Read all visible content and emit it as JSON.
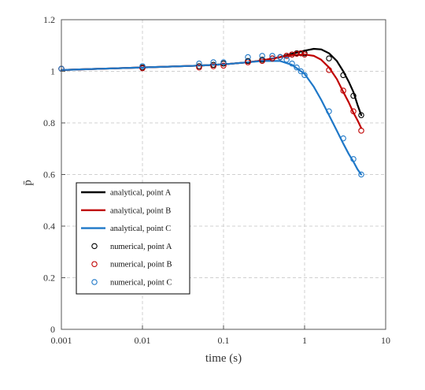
{
  "chart_data": {
    "type": "line",
    "xlabel": "time (s)",
    "ylabel": "p̄",
    "x_scale": "log",
    "xlim": [
      0.001,
      10
    ],
    "ylim": [
      0,
      1.2
    ],
    "x_ticks": [
      0.001,
      0.01,
      0.1,
      1,
      10
    ],
    "x_tick_labels": [
      "0.001",
      "0.01",
      "0.1",
      "1",
      "10"
    ],
    "y_ticks": [
      0,
      0.2,
      0.4,
      0.6,
      0.8,
      1,
      1.2
    ],
    "y_tick_labels": [
      "0",
      "0.2",
      "0.4",
      "0.6",
      "0.8",
      "1",
      "1.2"
    ],
    "grid": true,
    "legend_position": "middle-left",
    "series": [
      {
        "name": "analytical, point A",
        "kind": "line",
        "color": "#000000",
        "points": [
          [
            0.001,
            1.005
          ],
          [
            0.01,
            1.015
          ],
          [
            0.05,
            1.022
          ],
          [
            0.1,
            1.027
          ],
          [
            0.2,
            1.035
          ],
          [
            0.3,
            1.042
          ],
          [
            0.5,
            1.055
          ],
          [
            0.7,
            1.068
          ],
          [
            1.0,
            1.08
          ],
          [
            1.3,
            1.087
          ],
          [
            1.6,
            1.085
          ],
          [
            2.0,
            1.07
          ],
          [
            2.5,
            1.04
          ],
          [
            3.0,
            1.0
          ],
          [
            3.5,
            0.96
          ],
          [
            4.0,
            0.92
          ],
          [
            4.5,
            0.87
          ],
          [
            5.0,
            0.83
          ]
        ]
      },
      {
        "name": "analytical, point B",
        "kind": "line",
        "color": "#c00000",
        "points": [
          [
            0.001,
            1.005
          ],
          [
            0.01,
            1.015
          ],
          [
            0.05,
            1.022
          ],
          [
            0.1,
            1.027
          ],
          [
            0.2,
            1.035
          ],
          [
            0.3,
            1.042
          ],
          [
            0.5,
            1.055
          ],
          [
            0.7,
            1.063
          ],
          [
            1.0,
            1.065
          ],
          [
            1.3,
            1.06
          ],
          [
            1.6,
            1.045
          ],
          [
            2.0,
            1.015
          ],
          [
            2.5,
            0.97
          ],
          [
            3.0,
            0.92
          ],
          [
            3.5,
            0.88
          ],
          [
            4.0,
            0.84
          ],
          [
            4.5,
            0.81
          ],
          [
            5.0,
            0.78
          ]
        ]
      },
      {
        "name": "analytical, point C",
        "kind": "line",
        "color": "#1f78c8",
        "points": [
          [
            0.001,
            1.005
          ],
          [
            0.01,
            1.015
          ],
          [
            0.05,
            1.022
          ],
          [
            0.1,
            1.027
          ],
          [
            0.2,
            1.035
          ],
          [
            0.3,
            1.04
          ],
          [
            0.5,
            1.04
          ],
          [
            0.7,
            1.025
          ],
          [
            1.0,
            0.99
          ],
          [
            1.3,
            0.94
          ],
          [
            1.6,
            0.89
          ],
          [
            2.0,
            0.83
          ],
          [
            2.5,
            0.77
          ],
          [
            3.0,
            0.72
          ],
          [
            3.5,
            0.68
          ],
          [
            4.0,
            0.65
          ],
          [
            4.5,
            0.62
          ],
          [
            5.0,
            0.6
          ]
        ]
      },
      {
        "name": "numerical, point A",
        "kind": "marker",
        "color": "#000000",
        "points": [
          [
            0.001,
            1.01
          ],
          [
            0.01,
            1.015
          ],
          [
            0.05,
            1.02
          ],
          [
            0.075,
            1.025
          ],
          [
            0.1,
            1.03
          ],
          [
            0.2,
            1.04
          ],
          [
            0.3,
            1.045
          ],
          [
            0.4,
            1.05
          ],
          [
            0.5,
            1.055
          ],
          [
            0.6,
            1.06
          ],
          [
            0.7,
            1.065
          ],
          [
            0.8,
            1.07
          ],
          [
            0.9,
            1.07
          ],
          [
            1.0,
            1.07
          ],
          [
            2.0,
            1.05
          ],
          [
            3.0,
            0.985
          ],
          [
            4.0,
            0.905
          ],
          [
            5.0,
            0.83
          ]
        ]
      },
      {
        "name": "numerical, point B",
        "kind": "marker",
        "color": "#c00000",
        "points": [
          [
            0.001,
            1.01
          ],
          [
            0.01,
            1.012
          ],
          [
            0.05,
            1.015
          ],
          [
            0.075,
            1.02
          ],
          [
            0.1,
            1.022
          ],
          [
            0.2,
            1.035
          ],
          [
            0.3,
            1.04
          ],
          [
            0.4,
            1.05
          ],
          [
            0.5,
            1.055
          ],
          [
            0.6,
            1.06
          ],
          [
            0.7,
            1.065
          ],
          [
            0.8,
            1.068
          ],
          [
            0.9,
            1.07
          ],
          [
            1.0,
            1.065
          ],
          [
            2.0,
            1.005
          ],
          [
            3.0,
            0.925
          ],
          [
            4.0,
            0.845
          ],
          [
            5.0,
            0.77
          ]
        ]
      },
      {
        "name": "numerical, point C",
        "kind": "marker",
        "color": "#1f78c8",
        "points": [
          [
            0.001,
            1.01
          ],
          [
            0.01,
            1.02
          ],
          [
            0.05,
            1.03
          ],
          [
            0.075,
            1.035
          ],
          [
            0.1,
            1.035
          ],
          [
            0.2,
            1.055
          ],
          [
            0.3,
            1.06
          ],
          [
            0.4,
            1.06
          ],
          [
            0.5,
            1.055
          ],
          [
            0.6,
            1.045
          ],
          [
            0.7,
            1.03
          ],
          [
            0.8,
            1.015
          ],
          [
            0.9,
            1.0
          ],
          [
            1.0,
            0.985
          ],
          [
            2.0,
            0.845
          ],
          [
            3.0,
            0.74
          ],
          [
            4.0,
            0.66
          ],
          [
            5.0,
            0.6
          ]
        ]
      }
    ]
  }
}
